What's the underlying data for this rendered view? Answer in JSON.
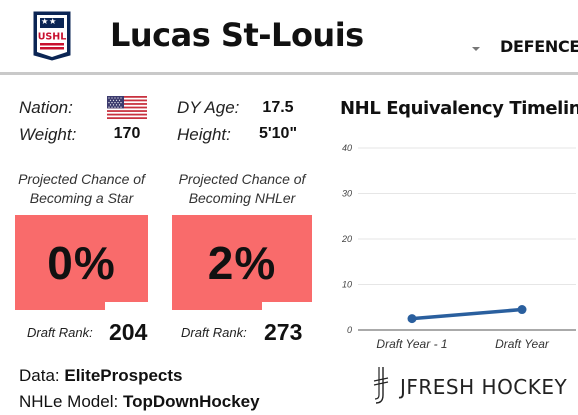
{
  "header": {
    "logo_text": "USHL",
    "player_name": "Lucas St-Louis",
    "position": "DEFENCE",
    "caret_icon": "caret-down-icon"
  },
  "bio": {
    "nation_label": "Nation:",
    "nation_flag_icon": "us-flag-icon",
    "weight_label": "Weight:",
    "weight_value": "170",
    "dy_age_label": "DY Age:",
    "dy_age_value": "17.5",
    "height_label": "Height:",
    "height_value": "5'10\""
  },
  "projections": [
    {
      "title_line1": "Projected Chance of",
      "title_line2": "Becoming a Star",
      "percent": "0%",
      "rank_label": "Draft Rank:",
      "rank_value": "204"
    },
    {
      "title_line1": "Projected Chance of",
      "title_line2": "Becoming NHLer",
      "percent": "2%",
      "rank_label": "Draft Rank:",
      "rank_value": "273"
    }
  ],
  "footer": {
    "data_label": "Data:",
    "data_source": "EliteProspects",
    "model_label": "NHLe Model:",
    "model_name": "TopDownHockey"
  },
  "brand": {
    "name": "JFRESH HOCKEY",
    "icon": "jfresh-logo-icon"
  },
  "colors": {
    "percent_box": "#f96b6b",
    "line": "#2a5f9e",
    "grid": "#e6e6e6",
    "header_rule": "#c9c9c9"
  },
  "chart_data": {
    "type": "line",
    "title": "NHL Equivalency Timeline",
    "categories": [
      "Draft Year - 1",
      "Draft Year"
    ],
    "series": [
      {
        "values": [
          2.5,
          4.5
        ]
      }
    ],
    "ylim": [
      0,
      40
    ],
    "yticks": [
      "0",
      "10",
      "20",
      "30",
      "40"
    ],
    "grid": true
  }
}
